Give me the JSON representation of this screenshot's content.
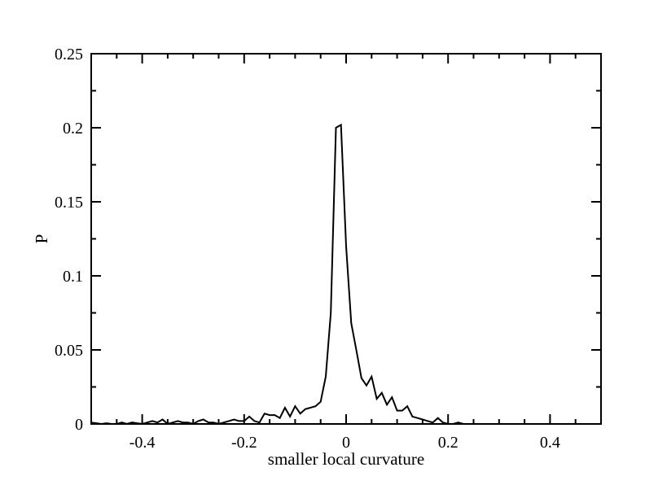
{
  "chart_data": {
    "type": "line",
    "title": "",
    "xlabel": "smaller local curvature",
    "ylabel": "P",
    "xlim": [
      -0.5,
      0.5
    ],
    "ylim": [
      0,
      0.25
    ],
    "x_ticks": [
      {
        "value": -0.4,
        "label": "-0.4"
      },
      {
        "value": -0.2,
        "label": "-0.2"
      },
      {
        "value": 0,
        "label": "0"
      },
      {
        "value": 0.2,
        "label": "0.2"
      },
      {
        "value": 0.4,
        "label": "0.4"
      }
    ],
    "y_ticks": [
      {
        "value": 0,
        "label": "0"
      },
      {
        "value": 0.05,
        "label": "0.05"
      },
      {
        "value": 0.1,
        "label": "0.1"
      },
      {
        "value": 0.15,
        "label": "0.15"
      },
      {
        "value": 0.2,
        "label": "0.2"
      },
      {
        "value": 0.25,
        "label": "0.25"
      }
    ],
    "grid": false,
    "line_color": "#000000",
    "series": [
      {
        "x": [
          -0.5,
          -0.49,
          -0.48,
          -0.47,
          -0.46,
          -0.45,
          -0.44,
          -0.43,
          -0.42,
          -0.41,
          -0.4,
          -0.39,
          -0.38,
          -0.37,
          -0.36,
          -0.35,
          -0.34,
          -0.33,
          -0.32,
          -0.31,
          -0.3,
          -0.29,
          -0.28,
          -0.27,
          -0.26,
          -0.25,
          -0.24,
          -0.23,
          -0.22,
          -0.21,
          -0.2,
          -0.19,
          -0.18,
          -0.17,
          -0.16,
          -0.15,
          -0.14,
          -0.13,
          -0.12,
          -0.11,
          -0.1,
          -0.09,
          -0.08,
          -0.07,
          -0.06,
          -0.05,
          -0.04,
          -0.03,
          -0.02,
          -0.01,
          0,
          0.01,
          0.02,
          0.03,
          0.04,
          0.05,
          0.06,
          0.07,
          0.08,
          0.09,
          0.1,
          0.11,
          0.12,
          0.13,
          0.14,
          0.15,
          0.16,
          0.17,
          0.18,
          0.19,
          0.2,
          0.21,
          0.22,
          0.23,
          0.24
        ],
        "y": [
          0.001,
          0.0005,
          0,
          0.0005,
          0,
          0,
          0.001,
          0,
          0.001,
          0.0005,
          0,
          0.001,
          0.002,
          0.001,
          0.003,
          0,
          0.001,
          0.002,
          0.001,
          0.001,
          0,
          0.002,
          0.003,
          0.001,
          0.001,
          0,
          0.001,
          0.002,
          0.003,
          0.002,
          0.002,
          0.005,
          0.002,
          0.001,
          0.007,
          0.006,
          0.006,
          0.004,
          0.011,
          0.005,
          0.012,
          0.007,
          0.01,
          0.011,
          0.012,
          0.015,
          0.032,
          0.075,
          0.2,
          0.202,
          0.12,
          0.068,
          0.05,
          0.031,
          0.026,
          0.032,
          0.017,
          0.021,
          0.013,
          0.018,
          0.009,
          0.009,
          0.012,
          0.005,
          0.004,
          0.003,
          0.002,
          0.001,
          0.004,
          0.001,
          0,
          0,
          0.001,
          0,
          0
        ]
      }
    ]
  }
}
